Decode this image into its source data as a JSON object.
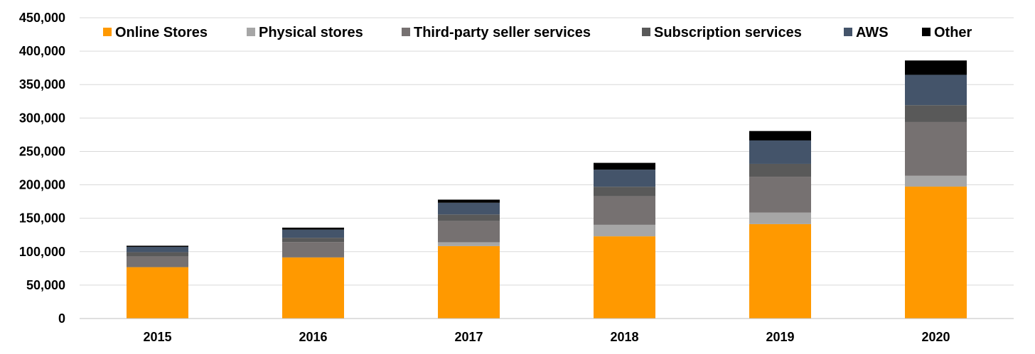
{
  "chart_data": {
    "type": "bar",
    "stacked": true,
    "title": "",
    "xlabel": "",
    "ylabel": "",
    "categories": [
      "2015",
      "2016",
      "2017",
      "2018",
      "2019",
      "2020"
    ],
    "ylim": [
      0,
      450000
    ],
    "yticks": [
      0,
      50000,
      100000,
      150000,
      200000,
      250000,
      300000,
      350000,
      400000,
      450000
    ],
    "ytick_labels": [
      "0",
      "50,000",
      "100,000",
      "150,000",
      "200,000",
      "250,000",
      "300,000",
      "350,000",
      "400,000",
      "450,000"
    ],
    "grid": true,
    "legend_position": "top",
    "series": [
      {
        "name": "Online Stores",
        "color": "#ff9900",
        "values": [
          76863,
          91431,
          108354,
          122987,
          141247,
          197346
        ]
      },
      {
        "name": "Physical stores",
        "color": "#a6a6a6",
        "values": [
          0,
          0,
          5798,
          17224,
          17192,
          16227
        ]
      },
      {
        "name": "Third-party seller services",
        "color": "#767171",
        "values": [
          16086,
          22993,
          31881,
          42745,
          53762,
          80461
        ]
      },
      {
        "name": "Subscription services",
        "color": "#595959",
        "values": [
          6394,
          6394,
          9721,
          14168,
          19210,
          25207
        ]
      },
      {
        "name": "AWS",
        "color": "#44546a",
        "values": [
          7880,
          12219,
          17459,
          25655,
          35026,
          45370
        ]
      },
      {
        "name": "Other",
        "color": "#000000",
        "values": [
          1710,
          2950,
          4653,
          10108,
          14085,
          21453
        ]
      }
    ]
  }
}
